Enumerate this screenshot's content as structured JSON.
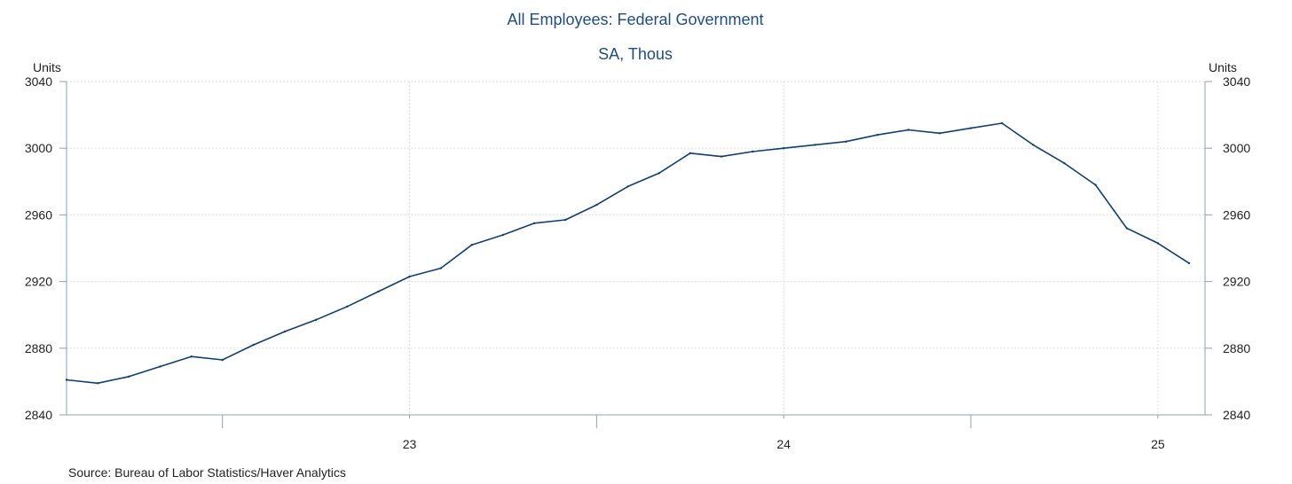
{
  "chart_data": {
    "type": "line",
    "title": "All Employees: Federal Government",
    "subtitle": "SA, Thous",
    "ylabel_left": "Units",
    "ylabel_right": "Units",
    "ylim": [
      2840,
      3040
    ],
    "yticks": [
      "2840",
      "2880",
      "2920",
      "2960",
      "3000",
      "3040"
    ],
    "xticks": [
      {
        "label": "23",
        "at": "2023-01"
      },
      {
        "label": "24",
        "at": "2024-01"
      },
      {
        "label": "25",
        "at": "2025-01"
      }
    ],
    "grid": true,
    "colors": {
      "line": "#0f3f73",
      "title": "#1f4e86",
      "axis": "#8ea0b4",
      "grid": "#dcdfe4"
    },
    "series": [
      {
        "x": [
          "2022-02",
          "2022-03",
          "2022-04",
          "2022-05",
          "2022-06",
          "2022-07",
          "2022-08",
          "2022-09",
          "2022-10",
          "2022-11",
          "2022-12",
          "2023-01",
          "2023-02",
          "2023-03",
          "2023-04",
          "2023-05",
          "2023-06",
          "2023-07",
          "2023-08",
          "2023-09",
          "2023-10",
          "2023-11",
          "2023-12",
          "2024-01",
          "2024-02",
          "2024-03",
          "2024-04",
          "2024-05",
          "2024-06",
          "2024-07",
          "2024-08",
          "2024-09",
          "2024-10",
          "2024-11",
          "2024-12",
          "2025-01",
          "2025-02"
        ],
        "values": [
          2861,
          2859,
          2863,
          2869,
          2875,
          2873,
          2882,
          2890,
          2897,
          2905,
          2914,
          2923,
          2928,
          2942,
          2948,
          2955,
          2957,
          2966,
          2977,
          2985,
          2997,
          2995,
          2998,
          3000,
          3002,
          3004,
          3008,
          3011,
          3009,
          3012,
          3015,
          3002,
          2991,
          2978,
          2952,
          2943,
          2931
        ]
      }
    ]
  },
  "source": "Source:  Bureau of Labor Statistics/Haver Analytics"
}
